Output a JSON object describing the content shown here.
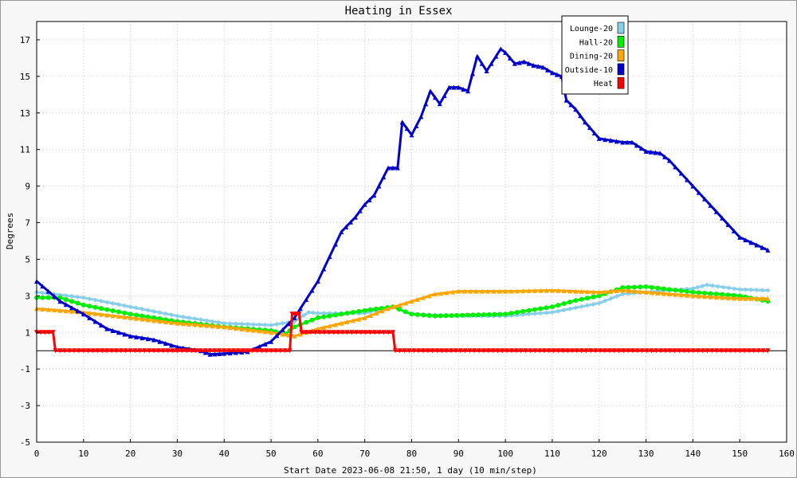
{
  "chart_data": {
    "type": "line",
    "title": "Heating in Essex",
    "xlabel": "Start Date 2023-06-08 21:50, 1 day (10 min/step)",
    "ylabel": "Degrees",
    "xlim": [
      0,
      160
    ],
    "ylim": [
      -5,
      18
    ],
    "x_ticks": [
      "0",
      "10",
      "20",
      "30",
      "40",
      "50",
      "60",
      "70",
      "80",
      "90",
      "100",
      "110",
      "120",
      "130",
      "140",
      "150",
      "160"
    ],
    "y_ticks": [
      "-5",
      "-3",
      "-1",
      "1",
      "3",
      "5",
      "7",
      "9",
      "11",
      "13",
      "15",
      "17"
    ],
    "grid": true,
    "legend_position": "top-right",
    "series": [
      {
        "name": "Lounge-20",
        "color": "#87ceeb",
        "marker": "diamond",
        "points": [
          [
            0,
            3.2
          ],
          [
            10,
            2.9
          ],
          [
            20,
            2.4
          ],
          [
            30,
            1.9
          ],
          [
            40,
            1.5
          ],
          [
            50,
            1.4
          ],
          [
            55,
            1.6
          ],
          [
            58,
            2.1
          ],
          [
            60,
            2.05
          ],
          [
            70,
            2.05
          ],
          [
            76,
            2.4
          ],
          [
            80,
            2.0
          ],
          [
            90,
            1.9
          ],
          [
            100,
            1.9
          ],
          [
            110,
            2.1
          ],
          [
            120,
            2.6
          ],
          [
            125,
            3.1
          ],
          [
            130,
            3.2
          ],
          [
            135,
            3.3
          ],
          [
            140,
            3.4
          ],
          [
            143,
            3.6
          ],
          [
            150,
            3.35
          ],
          [
            156,
            3.3
          ]
        ]
      },
      {
        "name": "Hall-20",
        "color": "#00ee00",
        "marker": "circle",
        "points": [
          [
            0,
            2.9
          ],
          [
            5,
            2.9
          ],
          [
            10,
            2.5
          ],
          [
            20,
            2.0
          ],
          [
            30,
            1.6
          ],
          [
            40,
            1.3
          ],
          [
            50,
            1.1
          ],
          [
            53,
            0.9
          ],
          [
            55,
            1.3
          ],
          [
            60,
            1.8
          ],
          [
            70,
            2.2
          ],
          [
            76,
            2.4
          ],
          [
            80,
            2.0
          ],
          [
            85,
            1.9
          ],
          [
            100,
            2.0
          ],
          [
            110,
            2.4
          ],
          [
            115,
            2.75
          ],
          [
            120,
            3.0
          ],
          [
            125,
            3.45
          ],
          [
            130,
            3.5
          ],
          [
            140,
            3.2
          ],
          [
            150,
            3.0
          ],
          [
            156,
            2.7
          ]
        ]
      },
      {
        "name": "Dining-20",
        "color": "#ffa500",
        "marker": "triangle",
        "points": [
          [
            0,
            2.3
          ],
          [
            10,
            2.1
          ],
          [
            20,
            1.8
          ],
          [
            30,
            1.5
          ],
          [
            40,
            1.3
          ],
          [
            50,
            1.0
          ],
          [
            55,
            0.8
          ],
          [
            60,
            1.2
          ],
          [
            70,
            1.8
          ],
          [
            75,
            2.3
          ],
          [
            80,
            2.7
          ],
          [
            85,
            3.1
          ],
          [
            90,
            3.25
          ],
          [
            100,
            3.25
          ],
          [
            110,
            3.3
          ],
          [
            120,
            3.2
          ],
          [
            125,
            3.3
          ],
          [
            130,
            3.2
          ],
          [
            140,
            3.0
          ],
          [
            150,
            2.85
          ],
          [
            156,
            2.85
          ]
        ]
      },
      {
        "name": "Outside-10",
        "color": "#0000cd",
        "marker": "triangle",
        "points": [
          [
            0,
            3.8
          ],
          [
            5,
            2.7
          ],
          [
            10,
            2.0
          ],
          [
            15,
            1.2
          ],
          [
            20,
            0.8
          ],
          [
            25,
            0.6
          ],
          [
            30,
            0.2
          ],
          [
            35,
            0.0
          ],
          [
            37,
            -0.2
          ],
          [
            40,
            -0.15
          ],
          [
            45,
            -0.05
          ],
          [
            50,
            0.5
          ],
          [
            55,
            1.8
          ],
          [
            60,
            3.8
          ],
          [
            65,
            6.5
          ],
          [
            68,
            7.3
          ],
          [
            70,
            8.0
          ],
          [
            72,
            8.5
          ],
          [
            75,
            10.0
          ],
          [
            77,
            10.0
          ],
          [
            78,
            12.5
          ],
          [
            80,
            11.8
          ],
          [
            82,
            12.8
          ],
          [
            84,
            14.2
          ],
          [
            86,
            13.5
          ],
          [
            88,
            14.4
          ],
          [
            90,
            14.4
          ],
          [
            92,
            14.2
          ],
          [
            94,
            16.1
          ],
          [
            96,
            15.3
          ],
          [
            98,
            16.1
          ],
          [
            99,
            16.5
          ],
          [
            100,
            16.3
          ],
          [
            102,
            15.7
          ],
          [
            104,
            15.8
          ],
          [
            106,
            15.6
          ],
          [
            108,
            15.5
          ],
          [
            110,
            15.2
          ],
          [
            112,
            15.0
          ],
          [
            113,
            13.7
          ],
          [
            115,
            13.2
          ],
          [
            117,
            12.5
          ],
          [
            120,
            11.6
          ],
          [
            125,
            11.4
          ],
          [
            127,
            11.4
          ],
          [
            130,
            10.9
          ],
          [
            133,
            10.8
          ],
          [
            135,
            10.4
          ],
          [
            140,
            9.0
          ],
          [
            145,
            7.6
          ],
          [
            150,
            6.2
          ],
          [
            156,
            5.5
          ]
        ]
      },
      {
        "name": "Heat",
        "color": "#ff0000",
        "marker": "triangle-down",
        "points": [
          [
            0,
            1
          ],
          [
            3.5,
            1
          ],
          [
            4,
            0
          ],
          [
            54,
            0
          ],
          [
            54.5,
            2
          ],
          [
            56,
            2
          ],
          [
            56.5,
            1
          ],
          [
            76,
            1
          ],
          [
            76.5,
            0
          ],
          [
            156,
            0
          ]
        ]
      }
    ]
  }
}
